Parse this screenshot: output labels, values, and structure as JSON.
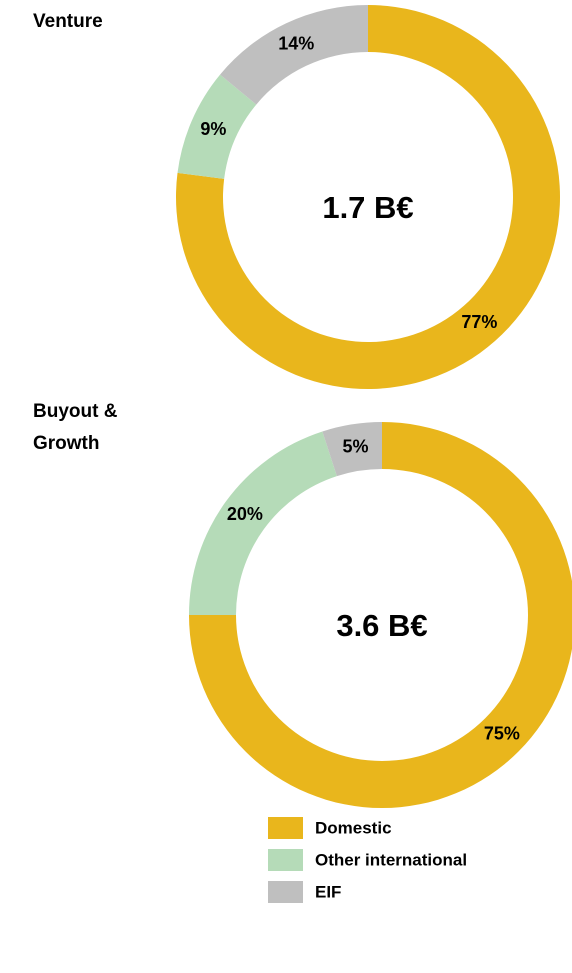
{
  "chart_data": [
    {
      "type": "donut",
      "title": [
        "Venture"
      ],
      "center_label": "1.7 B€",
      "categories": [
        "Domestic",
        "Other international",
        "EIF"
      ],
      "values": [
        77,
        9,
        14
      ],
      "value_labels": [
        "77%",
        "9%",
        "14%"
      ],
      "colors": [
        "#e9b61c",
        "#b5dbb8",
        "#bfbfbf"
      ]
    },
    {
      "type": "donut",
      "title": [
        "Buyout &",
        "Growth"
      ],
      "center_label": "3.6 B€",
      "categories": [
        "Domestic",
        "Other international",
        "EIF"
      ],
      "values": [
        75,
        20,
        5
      ],
      "value_labels": [
        "75%",
        "20%",
        "5%"
      ],
      "colors": [
        "#e9b61c",
        "#b5dbb8",
        "#bfbfbf"
      ]
    }
  ]
}
